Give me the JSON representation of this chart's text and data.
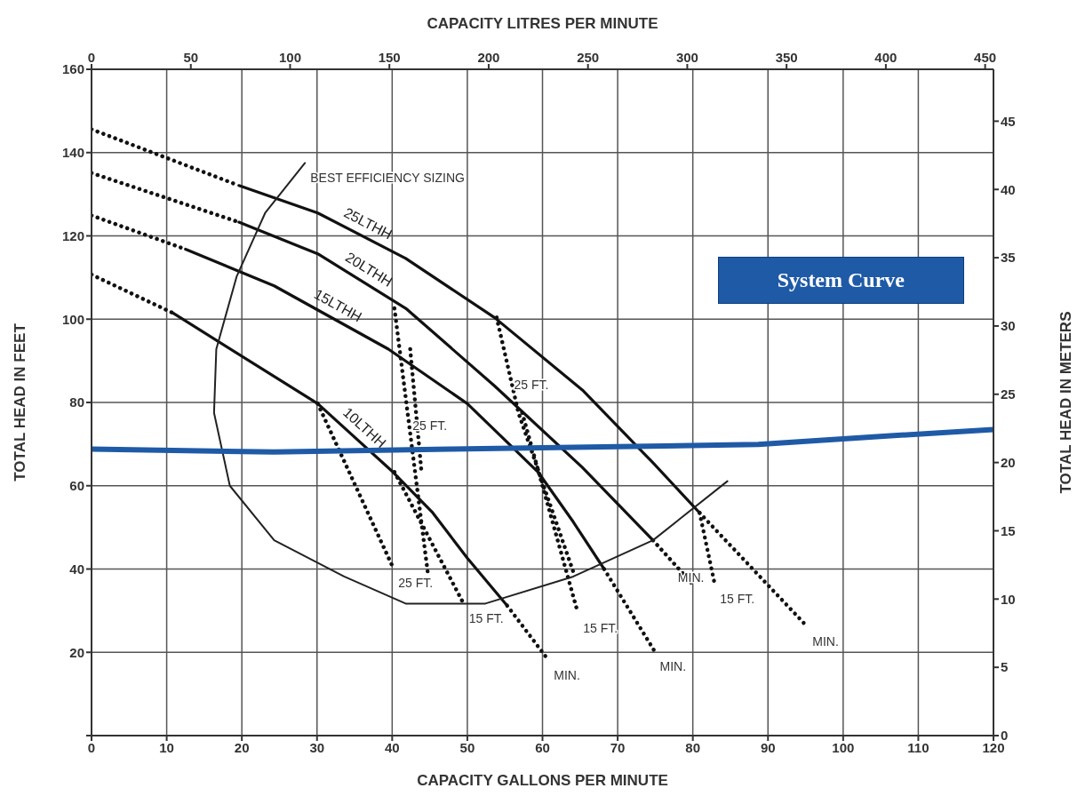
{
  "chart_data": {
    "type": "line",
    "xlabel": "CAPACITY GALLONS PER MINUTE",
    "x2label": "CAPACITY LITRES PER MINUTE",
    "ylabel": "TOTAL HEAD IN FEET",
    "y2label": "TOTAL HEAD IN METERS",
    "xlim": [
      0,
      120
    ],
    "xticks": [
      0,
      10,
      20,
      30,
      40,
      50,
      60,
      70,
      80,
      90,
      100,
      110,
      120
    ],
    "x2lim": [
      0,
      454.2
    ],
    "x2ticks": [
      0,
      50,
      100,
      150,
      200,
      250,
      300,
      350,
      400,
      450
    ],
    "ylim": [
      0,
      160
    ],
    "yticks": [
      {
        "value": 0,
        "label": null
      },
      20,
      40,
      60,
      80,
      100,
      120,
      140,
      160
    ],
    "y2lim": [
      0,
      48.8
    ],
    "y2ticks": [
      0,
      5,
      10,
      15,
      20,
      25,
      30,
      35,
      40,
      45
    ],
    "grid": true,
    "legend": "top right",
    "marker": "none",
    "series": [
      {
        "color": "#111111",
        "line_style": "dotted",
        "x": [
          0,
          10.8
        ],
        "values": [
          110.7,
          101.5
        ]
      },
      {
        "name": "10LTHH",
        "color": "#111111",
        "line_style": "solid",
        "x": [
          10.8,
          30.1,
          40.1,
          45.4,
          50,
          55.3
        ],
        "values": [
          101.5,
          79.7,
          63.3,
          53.5,
          42.6,
          31.2
        ]
      },
      {
        "color": "#111111",
        "line_style": "dotted",
        "x": [
          55.3,
          60.8
        ],
        "values": [
          31.2,
          18.1
        ]
      },
      {
        "color": "#111111",
        "line_style": "dotted",
        "x": [
          0,
          12.5
        ],
        "values": [
          124.9,
          116.8
        ]
      },
      {
        "name": "15LTHH",
        "color": "#111111",
        "line_style": "solid",
        "x": [
          12.5,
          24.3,
          39.5,
          50,
          59.4,
          64.1,
          68.2
        ],
        "values": [
          116.8,
          108,
          92.8,
          79.7,
          63.3,
          51.3,
          40
        ]
      },
      {
        "color": "#111111",
        "line_style": "dotted",
        "x": [
          68.2,
          74.9
        ],
        "values": [
          40,
          20.3
        ]
      },
      {
        "color": "#111111",
        "line_style": "dotted",
        "x": [
          0,
          19.6
        ],
        "values": [
          135.1,
          123.3
        ]
      },
      {
        "name": "20LTHH",
        "color": "#111111",
        "line_style": "solid",
        "x": [
          19.6,
          30.1,
          41.8,
          53.6,
          65.3,
          74.7
        ],
        "values": [
          123.3,
          115.7,
          102.6,
          84,
          64.4,
          46.9
        ]
      },
      {
        "color": "#111111",
        "line_style": "dotted",
        "x": [
          74.7,
          79.9
        ],
        "values": [
          46.9,
          36.5
        ]
      },
      {
        "color": "#111111",
        "line_style": "dotted",
        "x": [
          0,
          19.6
        ],
        "values": [
          145.6,
          132.1
        ]
      },
      {
        "name": "25LTHH",
        "color": "#111111",
        "line_style": "solid",
        "x": [
          19.6,
          30.1,
          41.8,
          53.6,
          65.3,
          74.7,
          80.9
        ],
        "values": [
          132.1,
          125.5,
          114.6,
          100.4,
          83,
          65.5,
          53.5
        ]
      },
      {
        "color": "#111111",
        "line_style": "dotted",
        "x": [
          80.9,
          95.2
        ],
        "values": [
          53.5,
          26.2
        ]
      },
      {
        "color": "#111111",
        "line_style": "dotted",
        "x": [
          30.1,
          40.1
        ],
        "values": [
          79.7,
          40.4
        ]
      },
      {
        "color": "#111111",
        "line_style": "dotted",
        "x": [
          40.3,
          49.5
        ],
        "values": [
          63.3,
          31.7
        ]
      },
      {
        "color": "#111111",
        "line_style": "dotted",
        "x": [
          40.3,
          44.8
        ],
        "values": [
          102.6,
          38.2
        ]
      },
      {
        "color": "#111111",
        "line_style": "dotted",
        "x": [
          42.4,
          43.9
        ],
        "values": [
          92.8,
          63.3
        ]
      },
      {
        "color": "#111111",
        "line_style": "dotted",
        "x": [
          53.9,
          56.8,
          64.1
        ],
        "values": [
          100.4,
          77.5,
          39.3
        ]
      },
      {
        "color": "#111111",
        "line_style": "dotted",
        "x": [
          57.3,
          64.7
        ],
        "values": [
          77.5,
          29.5
        ]
      },
      {
        "color": "#111111",
        "line_style": "dotted",
        "x": [
          80.9,
          82.9
        ],
        "values": [
          53.5,
          36.5
        ]
      },
      {
        "color": "#222222",
        "line_style": "solid",
        "x": [
          28.4,
          23.1,
          19.3,
          16.6,
          16.3,
          18.4,
          24.3,
          33.6,
          41.8,
          52.4,
          64.1,
          74.7,
          84.6
        ],
        "values": [
          137.5,
          125.5,
          110.2,
          92.8,
          77.5,
          60,
          46.9,
          38.2,
          31.7,
          31.7,
          38.2,
          46.9,
          61.1
        ]
      },
      {
        "name": "System Curve",
        "color": "#1f5aa6",
        "line_style": "solid",
        "x": [
          0,
          24.3,
          47.7,
          88.7,
          106.3,
          120
        ],
        "values": [
          68.8,
          68.1,
          68.8,
          69.9,
          72,
          73.5
        ]
      }
    ],
    "annotations": [
      {
        "text": "BEST EFFICIENCY SIZING",
        "x": 28.4,
        "y": 137.5
      },
      {
        "text": "25 FT.",
        "x": 42.0,
        "y": 78
      },
      {
        "text": "25 FT.",
        "x": 55.5,
        "y": 88
      },
      {
        "text": "25 FT.",
        "x": 40.1,
        "y": 40.4
      },
      {
        "text": "15 FT.",
        "x": 49.5,
        "y": 31.7
      },
      {
        "text": "15 FT.",
        "x": 64.7,
        "y": 29.5
      },
      {
        "text": "MIN.",
        "x": 60.8,
        "y": 18.1
      },
      {
        "text": "MIN.",
        "x": 74.9,
        "y": 20.3
      },
      {
        "text": "MIN.",
        "x": 77.3,
        "y": 41.7
      },
      {
        "text": "15 FT.",
        "x": 82.9,
        "y": 36.5
      },
      {
        "text": "MIN.",
        "x": 95.2,
        "y": 26.2
      }
    ]
  }
}
